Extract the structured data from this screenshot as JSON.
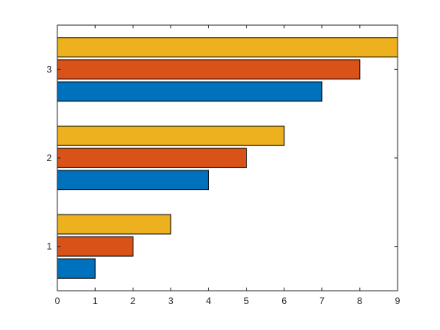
{
  "chart_data": {
    "type": "bar",
    "orientation": "horizontal",
    "categories": [
      "1",
      "2",
      "3"
    ],
    "series": [
      {
        "values": [
          1,
          4,
          7
        ],
        "color": "#0072BD"
      },
      {
        "values": [
          2,
          5,
          8
        ],
        "color": "#D95319"
      },
      {
        "values": [
          3,
          6,
          9
        ],
        "color": "#EDB120"
      }
    ],
    "xlim": [
      0,
      9
    ],
    "xticks": [
      "0",
      "1",
      "2",
      "3",
      "4",
      "5",
      "6",
      "7",
      "8",
      "9"
    ],
    "ylim": [
      0.5,
      3.5
    ],
    "grid": false,
    "legend": "none",
    "title": "",
    "xlabel": "",
    "ylabel": ""
  }
}
